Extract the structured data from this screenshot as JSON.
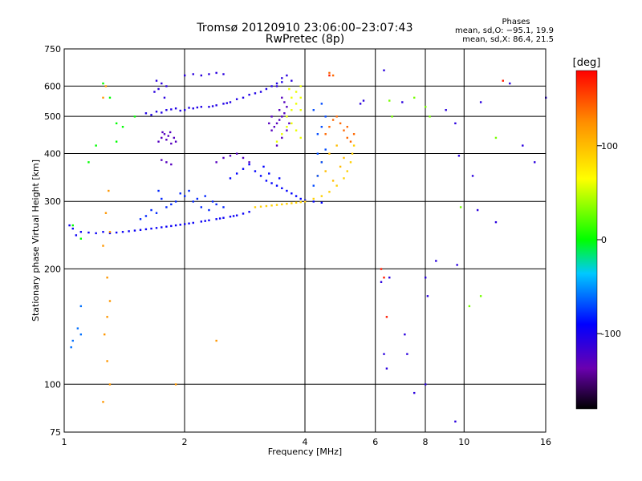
{
  "chart_data": {
    "type": "scatter",
    "title": "Tromsø 20120910 23:06:00–23:07:43",
    "subtitle": "RwPretec (8p)",
    "xlabel": "Frequency [MHz]",
    "ylabel": "Stationary phase Virtual Height [km]",
    "x_scale": "log",
    "y_scale": "log",
    "xlim": [
      1,
      16
    ],
    "ylim": [
      75,
      750
    ],
    "x_ticks": [
      1,
      2,
      4,
      6,
      8,
      10,
      16
    ],
    "y_ticks": [
      75,
      100,
      200,
      300,
      400,
      500,
      600,
      750
    ],
    "grid": true,
    "phase_stats": {
      "title": "Phases",
      "line_o": "mean, sd,O: −95.1, 19.9",
      "line_x": "mean, sd,X:  86.4, 21.5"
    },
    "colorbar": {
      "label": "[deg]",
      "range": [
        -180,
        180
      ],
      "ticks": [
        -100,
        0,
        100
      ]
    },
    "series": [
      {
        "color_value": -95,
        "points": [
          [
            1.05,
            255
          ],
          [
            1.1,
            250
          ],
          [
            1.2,
            248
          ],
          [
            1.3,
            248
          ],
          [
            1.4,
            250
          ],
          [
            1.5,
            252
          ],
          [
            1.6,
            254
          ],
          [
            1.7,
            256
          ],
          [
            1.8,
            258
          ],
          [
            1.9,
            260
          ],
          [
            2.0,
            262
          ],
          [
            2.1,
            264
          ],
          [
            2.2,
            266
          ],
          [
            2.3,
            268
          ],
          [
            2.4,
            270
          ],
          [
            2.5,
            272
          ],
          [
            2.6,
            274
          ],
          [
            2.7,
            276
          ],
          [
            2.8,
            279
          ],
          [
            2.9,
            282
          ],
          [
            1.25,
            250
          ],
          [
            1.45,
            251
          ],
          [
            1.65,
            255
          ],
          [
            1.85,
            259
          ],
          [
            2.05,
            263
          ],
          [
            2.25,
            267
          ],
          [
            2.45,
            271
          ],
          [
            2.65,
            275
          ],
          [
            1.03,
            260
          ],
          [
            1.07,
            245
          ],
          [
            1.15,
            249
          ],
          [
            1.35,
            249
          ],
          [
            1.55,
            253
          ],
          [
            1.75,
            257
          ],
          [
            1.95,
            261
          ]
        ]
      },
      {
        "color_value": -80,
        "points": [
          [
            1.6,
            275
          ],
          [
            1.7,
            280
          ],
          [
            1.8,
            290
          ],
          [
            1.9,
            300
          ],
          [
            2.0,
            310
          ],
          [
            2.1,
            300
          ],
          [
            2.2,
            290
          ],
          [
            2.3,
            285
          ],
          [
            2.4,
            295
          ],
          [
            1.75,
            305
          ],
          [
            1.85,
            295
          ],
          [
            2.05,
            320
          ],
          [
            2.15,
            305
          ],
          [
            1.65,
            285
          ],
          [
            1.55,
            270
          ],
          [
            2.35,
            300
          ],
          [
            2.5,
            290
          ],
          [
            1.95,
            315
          ],
          [
            2.25,
            310
          ],
          [
            1.72,
            320
          ]
        ]
      },
      {
        "color_value": -105,
        "points": [
          [
            1.6,
            510
          ],
          [
            1.7,
            515
          ],
          [
            1.8,
            520
          ],
          [
            1.9,
            525
          ],
          [
            2.0,
            520
          ],
          [
            2.1,
            525
          ],
          [
            2.2,
            530
          ],
          [
            2.3,
            530
          ],
          [
            2.4,
            535
          ],
          [
            2.5,
            540
          ],
          [
            2.6,
            545
          ],
          [
            2.7,
            555
          ],
          [
            2.8,
            560
          ],
          [
            2.9,
            570
          ],
          [
            3.0,
            575
          ],
          [
            3.1,
            580
          ],
          [
            3.2,
            590
          ],
          [
            3.3,
            600
          ],
          [
            3.4,
            610
          ],
          [
            3.5,
            615
          ],
          [
            1.65,
            505
          ],
          [
            1.75,
            512
          ],
          [
            1.85,
            522
          ],
          [
            1.95,
            518
          ],
          [
            2.05,
            527
          ],
          [
            2.15,
            528
          ],
          [
            2.35,
            532
          ],
          [
            2.55,
            542
          ]
        ]
      },
      {
        "color_value": -130,
        "points": [
          [
            1.72,
            430
          ],
          [
            1.75,
            440
          ],
          [
            1.78,
            450
          ],
          [
            1.8,
            435
          ],
          [
            1.82,
            445
          ],
          [
            1.85,
            425
          ],
          [
            1.88,
            440
          ],
          [
            1.9,
            430
          ],
          [
            1.76,
            455
          ],
          [
            1.84,
            455
          ],
          [
            3.3,
            460
          ],
          [
            3.35,
            470
          ],
          [
            3.4,
            480
          ],
          [
            3.45,
            490
          ],
          [
            3.5,
            500
          ],
          [
            3.55,
            510
          ],
          [
            3.3,
            500
          ],
          [
            3.45,
            520
          ],
          [
            3.6,
            530
          ],
          [
            3.25,
            480
          ],
          [
            2.4,
            380
          ],
          [
            2.5,
            390
          ],
          [
            2.6,
            395
          ],
          [
            2.7,
            400
          ],
          [
            2.8,
            390
          ],
          [
            2.9,
            380
          ],
          [
            1.75,
            385
          ],
          [
            1.8,
            380
          ],
          [
            1.85,
            375
          ],
          [
            3.4,
            420
          ],
          [
            3.5,
            440
          ],
          [
            3.6,
            460
          ],
          [
            3.65,
            480
          ],
          [
            3.55,
            545
          ],
          [
            3.5,
            560
          ]
        ]
      },
      {
        "color_value": -110,
        "points": [
          [
            2.0,
            640
          ],
          [
            2.1,
            645
          ],
          [
            2.2,
            640
          ],
          [
            2.3,
            645
          ],
          [
            2.4,
            650
          ],
          [
            2.5,
            645
          ],
          [
            1.7,
            620
          ],
          [
            1.75,
            610
          ],
          [
            1.8,
            600
          ],
          [
            1.72,
            590
          ],
          [
            1.68,
            580
          ],
          [
            1.78,
            560
          ],
          [
            3.7,
            620
          ],
          [
            3.6,
            640
          ],
          [
            3.5,
            630
          ],
          [
            3.4,
            600
          ]
        ]
      },
      {
        "color_value": -90,
        "points": [
          [
            2.6,
            345
          ],
          [
            2.7,
            355
          ],
          [
            2.8,
            365
          ],
          [
            2.9,
            375
          ],
          [
            3.0,
            360
          ],
          [
            3.1,
            350
          ],
          [
            3.2,
            340
          ],
          [
            3.3,
            335
          ],
          [
            3.4,
            330
          ],
          [
            3.5,
            325
          ],
          [
            3.6,
            320
          ],
          [
            3.7,
            315
          ],
          [
            3.8,
            310
          ],
          [
            3.9,
            305
          ],
          [
            4.0,
            302
          ],
          [
            4.2,
            300
          ],
          [
            4.4,
            298
          ],
          [
            3.15,
            370
          ],
          [
            3.25,
            355
          ],
          [
            3.45,
            345
          ]
        ]
      },
      {
        "color_value": 90,
        "points": [
          [
            3.0,
            290
          ],
          [
            3.2,
            292
          ],
          [
            3.4,
            294
          ],
          [
            3.6,
            296
          ],
          [
            3.8,
            298
          ],
          [
            4.0,
            300
          ],
          [
            4.2,
            305
          ],
          [
            4.4,
            310
          ],
          [
            4.6,
            318
          ],
          [
            4.8,
            330
          ],
          [
            5.0,
            345
          ],
          [
            5.1,
            360
          ],
          [
            5.2,
            380
          ],
          [
            5.25,
            400
          ],
          [
            5.3,
            420
          ],
          [
            3.1,
            291
          ],
          [
            3.3,
            293
          ],
          [
            3.5,
            295
          ],
          [
            3.7,
            297
          ],
          [
            3.9,
            299
          ]
        ]
      },
      {
        "color_value": 60,
        "points": [
          [
            3.6,
            500
          ],
          [
            3.7,
            520
          ],
          [
            3.8,
            540
          ],
          [
            3.9,
            560
          ],
          [
            3.7,
            480
          ],
          [
            3.8,
            460
          ],
          [
            3.9,
            440
          ],
          [
            3.6,
            470
          ],
          [
            3.8,
            580
          ],
          [
            3.9,
            600
          ],
          [
            3.5,
            450
          ],
          [
            3.4,
            430
          ],
          [
            3.9,
            520
          ],
          [
            3.7,
            560
          ],
          [
            3.65,
            590
          ]
        ]
      },
      {
        "color_value": 140,
        "points": [
          [
            4.5,
            450
          ],
          [
            4.6,
            470
          ],
          [
            4.7,
            490
          ],
          [
            4.8,
            500
          ],
          [
            4.9,
            480
          ],
          [
            5.0,
            460
          ],
          [
            5.1,
            440
          ],
          [
            5.2,
            430
          ],
          [
            4.6,
            650
          ],
          [
            4.7,
            640
          ],
          [
            5.3,
            450
          ],
          [
            5.1,
            470
          ]
        ]
      },
      {
        "color_value": 100,
        "points": [
          [
            4.4,
            380
          ],
          [
            4.6,
            400
          ],
          [
            4.8,
            420
          ],
          [
            4.5,
            360
          ],
          [
            4.7,
            340
          ],
          [
            4.9,
            370
          ],
          [
            5.0,
            390
          ],
          [
            4.3,
            350
          ]
        ]
      },
      {
        "color_value": -70,
        "points": [
          [
            4.2,
            330
          ],
          [
            4.3,
            350
          ],
          [
            4.4,
            380
          ],
          [
            4.5,
            410
          ],
          [
            4.3,
            450
          ],
          [
            4.4,
            470
          ],
          [
            4.5,
            500
          ],
          [
            4.2,
            520
          ],
          [
            4.4,
            540
          ],
          [
            4.3,
            400
          ]
        ]
      },
      {
        "color_value": 0,
        "points": [
          [
            1.25,
            610
          ],
          [
            1.3,
            560
          ],
          [
            1.35,
            480
          ],
          [
            1.4,
            470
          ],
          [
            1.5,
            500
          ],
          [
            1.2,
            420
          ],
          [
            1.15,
            380
          ],
          [
            1.05,
            260
          ],
          [
            1.1,
            240
          ],
          [
            1.35,
            430
          ]
        ]
      },
      {
        "color_value": -60,
        "points": [
          [
            1.05,
            130
          ],
          [
            1.1,
            135
          ],
          [
            1.08,
            140
          ],
          [
            1.04,
            125
          ],
          [
            1.1,
            160
          ]
        ]
      },
      {
        "color_value": 120,
        "points": [
          [
            1.25,
            90
          ],
          [
            1.3,
            100
          ],
          [
            1.28,
            115
          ],
          [
            1.26,
            135
          ],
          [
            1.3,
            165
          ],
          [
            1.28,
            190
          ],
          [
            1.25,
            230
          ],
          [
            1.3,
            250
          ],
          [
            1.27,
            280
          ],
          [
            1.29,
            320
          ],
          [
            1.25,
            560
          ],
          [
            1.27,
            600
          ],
          [
            1.9,
            100
          ],
          [
            2.4,
            130
          ],
          [
            1.28,
            150
          ]
        ]
      },
      {
        "color_value": -110,
        "points": [
          [
            6.3,
            660
          ],
          [
            6.5,
            190
          ],
          [
            6.2,
            185
          ],
          [
            6.3,
            120
          ],
          [
            6.4,
            110
          ],
          [
            7.0,
            545
          ],
          [
            7.1,
            135
          ],
          [
            7.5,
            95
          ],
          [
            7.2,
            120
          ],
          [
            8.0,
            100
          ],
          [
            8.0,
            190
          ],
          [
            8.1,
            170
          ],
          [
            8.5,
            210
          ],
          [
            9.5,
            80
          ],
          [
            9.6,
            205
          ],
          [
            9.0,
            520
          ],
          [
            9.5,
            480
          ],
          [
            9.7,
            395
          ],
          [
            10.5,
            350
          ],
          [
            10.8,
            285
          ],
          [
            11.0,
            545
          ],
          [
            12.0,
            265
          ],
          [
            13.0,
            610
          ],
          [
            14.0,
            420
          ],
          [
            15.0,
            380
          ],
          [
            16.0,
            560
          ],
          [
            5.5,
            540
          ],
          [
            5.6,
            550
          ]
        ]
      },
      {
        "color_value": 30,
        "points": [
          [
            6.5,
            550
          ],
          [
            6.6,
            500
          ],
          [
            7.5,
            560
          ],
          [
            8.0,
            530
          ],
          [
            8.2,
            500
          ],
          [
            9.8,
            290
          ],
          [
            11.0,
            170
          ],
          [
            12.0,
            440
          ],
          [
            10.3,
            160
          ]
        ]
      },
      {
        "color_value": 170,
        "points": [
          [
            6.2,
            200
          ],
          [
            6.3,
            190
          ],
          [
            6.4,
            150
          ],
          [
            12.5,
            620
          ],
          [
            4.6,
            640
          ]
        ]
      }
    ]
  }
}
